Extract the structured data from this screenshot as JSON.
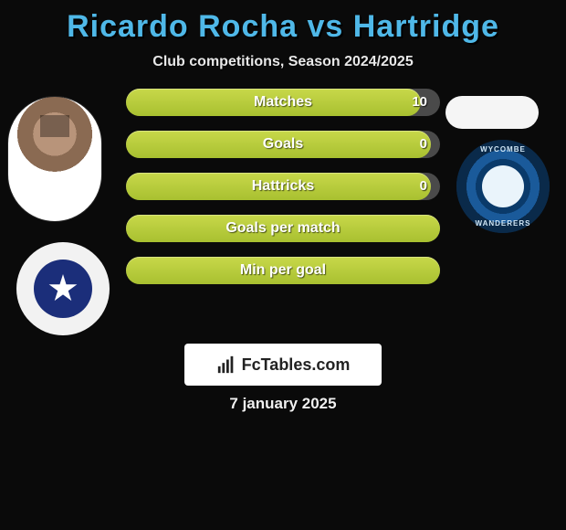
{
  "title": "Ricardo Rocha vs Hartridge",
  "subtitle": "Club competitions, Season 2024/2025",
  "title_color": "#4fb8e8",
  "bar_fill_color_top": "#c8d84a",
  "bar_fill_color_bottom": "#a8c030",
  "bar_bg_color": "#4a4a4a",
  "background_color": "#0a0a0a",
  "left_badge": {
    "outer_color": "#f2f2f2",
    "inner_color": "#1b2e7a",
    "star_color": "#ffffff"
  },
  "right_badge": {
    "ring_dark": "#0a2a4a",
    "ring_mid": "#1a5a9a",
    "center": "#0a3a6a",
    "swan_bg": "#eaf4fb",
    "text_top": "WYCOMBE",
    "text_bottom": "WANDERERS"
  },
  "bars": [
    {
      "label": "Matches",
      "right_value": "10",
      "fill_pct": 94
    },
    {
      "label": "Goals",
      "right_value": "0",
      "fill_pct": 97
    },
    {
      "label": "Hattricks",
      "right_value": "0",
      "fill_pct": 97
    },
    {
      "label": "Goals per match",
      "right_value": "",
      "fill_pct": 100
    },
    {
      "label": "Min per goal",
      "right_value": "",
      "fill_pct": 100
    }
  ],
  "logo_text": "FcTables.com",
  "date_text": "7 january 2025"
}
